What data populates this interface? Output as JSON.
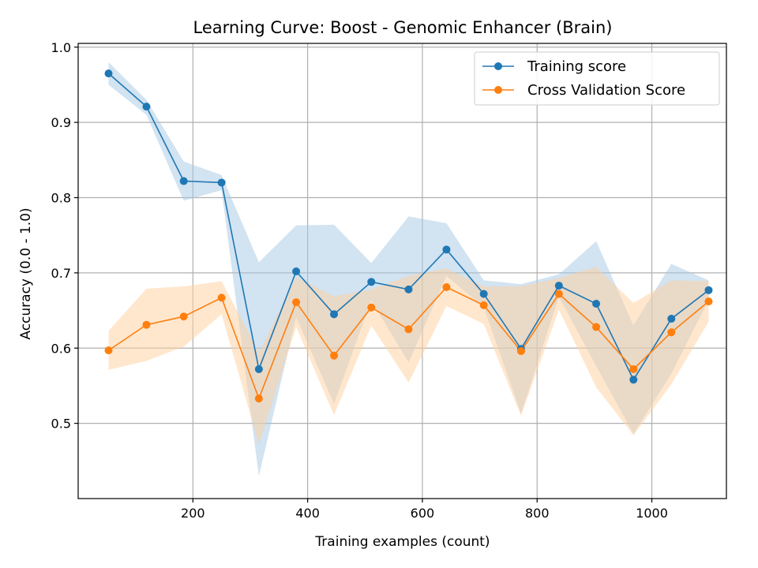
{
  "chart_data": {
    "type": "line",
    "title": "Learning Curve: Boost - Genomic Enhancer (Brain)",
    "xlabel": "Training examples (count)",
    "ylabel": "Accuracy (0.0 - 1.0)",
    "xlim": [
      0,
      1130
    ],
    "ylim": [
      0.4,
      1.005
    ],
    "xticks": [
      200,
      400,
      600,
      800,
      1000
    ],
    "yticks": [
      0.5,
      0.6,
      0.7,
      0.8,
      0.9,
      1.0
    ],
    "xtick_labels": [
      "200",
      "400",
      "600",
      "800",
      "1000"
    ],
    "ytick_labels": [
      "0.5",
      "0.6",
      "0.7",
      "0.8",
      "0.9",
      "1.0"
    ],
    "grid": true,
    "legend_position": "top-right",
    "x": [
      53,
      119,
      184,
      250,
      315,
      380,
      446,
      511,
      576,
      642,
      707,
      772,
      838,
      903,
      968,
      1034,
      1099
    ],
    "series": [
      {
        "name": "Training score",
        "color": "#1f77b4",
        "band_color": "#a6c8e3",
        "values": [
          0.965,
          0.921,
          0.822,
          0.82,
          0.572,
          0.702,
          0.645,
          0.688,
          0.678,
          0.731,
          0.672,
          0.599,
          0.683,
          0.659,
          0.558,
          0.639,
          0.677
        ],
        "upper": [
          0.98,
          0.93,
          0.848,
          0.83,
          0.714,
          0.763,
          0.764,
          0.713,
          0.775,
          0.766,
          0.69,
          0.685,
          0.698,
          0.742,
          0.63,
          0.712,
          0.69
        ],
        "lower": [
          0.95,
          0.91,
          0.796,
          0.81,
          0.43,
          0.641,
          0.526,
          0.663,
          0.581,
          0.696,
          0.654,
          0.513,
          0.668,
          0.576,
          0.486,
          0.566,
          0.664
        ]
      },
      {
        "name": "Cross Validation Score",
        "color": "#ff7f0e",
        "band_color": "#ffcf9e",
        "values": [
          0.597,
          0.631,
          0.642,
          0.667,
          0.533,
          0.661,
          0.59,
          0.654,
          0.625,
          0.681,
          0.657,
          0.596,
          0.672,
          0.628,
          0.572,
          0.621,
          0.662
        ],
        "upper": [
          0.623,
          0.679,
          0.682,
          0.689,
          0.594,
          0.694,
          0.669,
          0.678,
          0.696,
          0.706,
          0.682,
          0.682,
          0.693,
          0.708,
          0.66,
          0.69,
          0.689
        ],
        "lower": [
          0.571,
          0.583,
          0.602,
          0.645,
          0.472,
          0.628,
          0.511,
          0.63,
          0.554,
          0.656,
          0.632,
          0.51,
          0.651,
          0.548,
          0.484,
          0.552,
          0.635
        ]
      }
    ]
  }
}
